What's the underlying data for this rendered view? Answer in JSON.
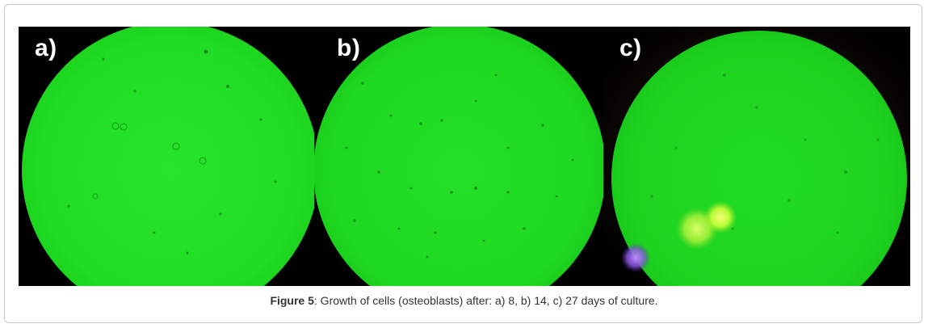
{
  "figure": {
    "panels": [
      {
        "label": "a)"
      },
      {
        "label": "b)"
      },
      {
        "label": "c)"
      }
    ],
    "caption": {
      "figure_number": "Figure 5",
      "text": ": Growth of cells (osteoblasts) after: a) 8, b) 14, c) 27 days of culture."
    },
    "colors": {
      "field_green": "#1fe01f",
      "background": "#000000",
      "label": "#ffffff"
    }
  }
}
